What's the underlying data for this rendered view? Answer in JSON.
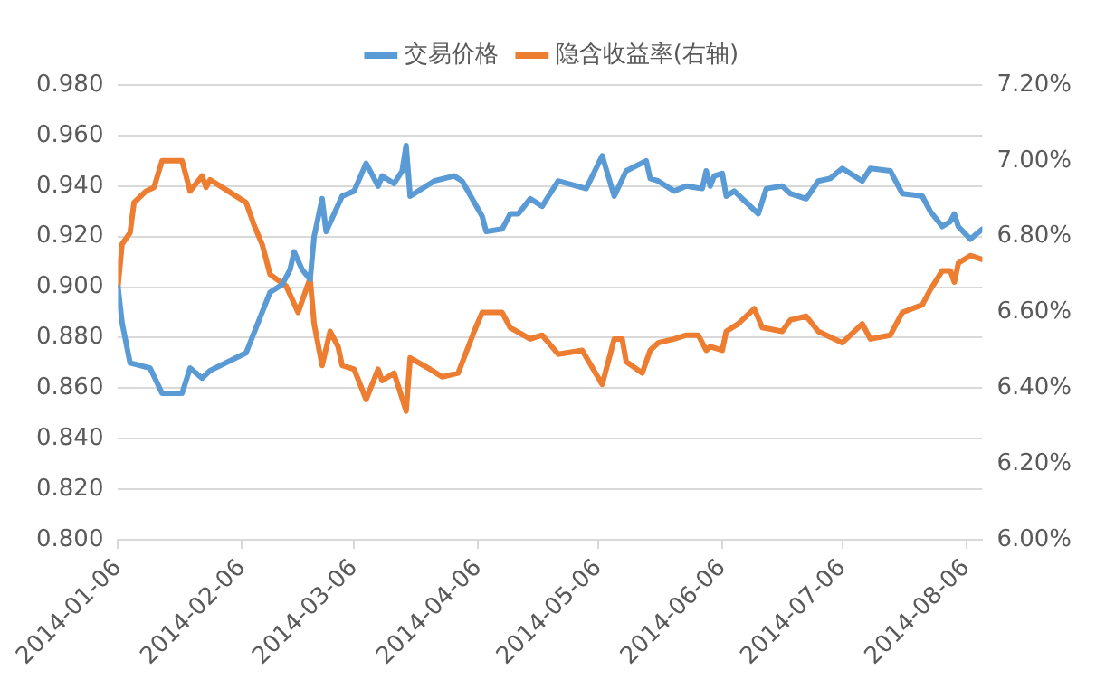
{
  "chart_data": {
    "type": "line",
    "legend": "top",
    "grid": "y",
    "marker": "none",
    "line_style": "solid",
    "xlim": [
      "2014-01-06",
      "2014-08-10"
    ],
    "xticks": [
      "2014-01-06",
      "2014-02-06",
      "2014-03-06",
      "2014-04-06",
      "2014-05-06",
      "2014-06-06",
      "2014-07-06",
      "2014-08-06"
    ],
    "ylim": [
      0.8,
      0.98
    ],
    "yticks": [
      {
        "value": 0.8,
        "label": "0.800"
      },
      {
        "value": 0.82,
        "label": "0.820"
      },
      {
        "value": 0.84,
        "label": "0.840"
      },
      {
        "value": 0.86,
        "label": "0.860"
      },
      {
        "value": 0.88,
        "label": "0.880"
      },
      {
        "value": 0.9,
        "label": "0.900"
      },
      {
        "value": 0.92,
        "label": "0.920"
      },
      {
        "value": 0.94,
        "label": "0.940"
      },
      {
        "value": 0.96,
        "label": "0.960"
      },
      {
        "value": 0.98,
        "label": "0.980"
      }
    ],
    "y2lim": [
      6.0,
      7.2
    ],
    "y2ticks": [
      {
        "value": 6.0,
        "label": "6.00%"
      },
      {
        "value": 6.2,
        "label": "6.20%"
      },
      {
        "value": 6.4,
        "label": "6.40%"
      },
      {
        "value": 6.6,
        "label": "6.60%"
      },
      {
        "value": 6.8,
        "label": "6.80%"
      },
      {
        "value": 7.0,
        "label": "7.00%"
      },
      {
        "value": 7.2,
        "label": "7.20%"
      }
    ],
    "series": [
      {
        "name": "交易价格",
        "color": "#5b9bd5",
        "x": [
          "2014-01-06",
          "2014-01-07",
          "2014-01-09",
          "2014-01-14",
          "2014-01-17",
          "2014-01-22",
          "2014-01-24",
          "2014-01-27",
          "2014-01-29",
          "2014-02-07",
          "2014-02-09",
          "2014-02-13",
          "2014-02-16",
          "2014-02-18",
          "2014-02-19",
          "2014-02-21",
          "2014-02-23",
          "2014-02-24",
          "2014-02-26",
          "2014-02-27",
          "2014-03-03",
          "2014-03-06",
          "2014-03-09",
          "2014-03-12",
          "2014-03-13",
          "2014-03-16",
          "2014-03-18",
          "2014-03-19",
          "2014-03-20",
          "2014-03-26",
          "2014-03-31",
          "2014-04-02",
          "2014-04-07",
          "2014-04-08",
          "2014-04-12",
          "2014-04-14",
          "2014-04-16",
          "2014-04-19",
          "2014-04-22",
          "2014-04-26",
          "2014-05-03",
          "2014-05-07",
          "2014-05-10",
          "2014-05-13",
          "2014-05-18",
          "2014-05-19",
          "2014-05-21",
          "2014-05-25",
          "2014-05-28",
          "2014-06-01",
          "2014-06-02",
          "2014-06-03",
          "2014-06-04",
          "2014-06-06",
          "2014-06-07",
          "2014-06-09",
          "2014-06-11",
          "2014-06-15",
          "2014-06-17",
          "2014-06-21",
          "2014-06-23",
          "2014-06-27",
          "2014-06-30",
          "2014-07-03",
          "2014-07-06",
          "2014-07-11",
          "2014-07-13",
          "2014-07-18",
          "2014-07-21",
          "2014-07-26",
          "2014-07-28",
          "2014-07-31",
          "2014-08-02",
          "2014-08-03",
          "2014-08-04",
          "2014-08-07",
          "2014-08-10"
        ],
        "values": [
          0.9,
          0.886,
          0.87,
          0.868,
          0.858,
          0.858,
          0.868,
          0.864,
          0.867,
          0.874,
          0.882,
          0.898,
          0.901,
          0.907,
          0.914,
          0.907,
          0.903,
          0.92,
          0.935,
          0.922,
          0.936,
          0.938,
          0.949,
          0.94,
          0.944,
          0.941,
          0.946,
          0.956,
          0.936,
          0.942,
          0.944,
          0.942,
          0.928,
          0.922,
          0.923,
          0.929,
          0.929,
          0.935,
          0.932,
          0.942,
          0.939,
          0.952,
          0.936,
          0.946,
          0.95,
          0.943,
          0.942,
          0.938,
          0.94,
          0.939,
          0.946,
          0.94,
          0.944,
          0.945,
          0.936,
          0.938,
          0.935,
          0.929,
          0.939,
          0.94,
          0.937,
          0.935,
          0.942,
          0.943,
          0.947,
          0.942,
          0.947,
          0.946,
          0.937,
          0.936,
          0.93,
          0.924,
          0.926,
          0.929,
          0.924,
          0.919,
          0.923
        ]
      },
      {
        "name": "隐含收益率(右轴)",
        "color": "#ed7d31",
        "axis": "y2",
        "x": [
          "2014-01-06",
          "2014-01-07",
          "2014-01-09",
          "2014-01-10",
          "2014-01-13",
          "2014-01-15",
          "2014-01-17",
          "2014-01-22",
          "2014-01-24",
          "2014-01-27",
          "2014-01-28",
          "2014-01-29",
          "2014-02-07",
          "2014-02-09",
          "2014-02-11",
          "2014-02-13",
          "2014-02-17",
          "2014-02-20",
          "2014-02-23",
          "2014-02-24",
          "2014-02-26",
          "2014-02-28",
          "2014-03-02",
          "2014-03-03",
          "2014-03-06",
          "2014-03-09",
          "2014-03-12",
          "2014-03-13",
          "2014-03-16",
          "2014-03-19",
          "2014-03-20",
          "2014-03-25",
          "2014-03-28",
          "2014-04-01",
          "2014-04-05",
          "2014-04-07",
          "2014-04-12",
          "2014-04-14",
          "2014-04-19",
          "2014-04-22",
          "2014-04-26",
          "2014-05-02",
          "2014-05-07",
          "2014-05-10",
          "2014-05-12",
          "2014-05-13",
          "2014-05-17",
          "2014-05-19",
          "2014-05-21",
          "2014-05-25",
          "2014-05-28",
          "2014-05-31",
          "2014-06-02",
          "2014-06-03",
          "2014-06-06",
          "2014-06-07",
          "2014-06-10",
          "2014-06-14",
          "2014-06-16",
          "2014-06-21",
          "2014-06-23",
          "2014-06-27",
          "2014-06-30",
          "2014-07-06",
          "2014-07-11",
          "2014-07-13",
          "2014-07-18",
          "2014-07-21",
          "2014-07-26",
          "2014-07-28",
          "2014-07-31",
          "2014-08-02",
          "2014-08-03",
          "2014-08-04",
          "2014-08-07",
          "2014-08-10"
        ],
        "values": [
          6.67,
          6.78,
          6.81,
          6.89,
          6.92,
          6.93,
          7.0,
          7.0,
          6.92,
          6.96,
          6.93,
          6.95,
          6.89,
          6.83,
          6.78,
          6.7,
          6.67,
          6.6,
          6.69,
          6.57,
          6.46,
          6.55,
          6.51,
          6.46,
          6.45,
          6.37,
          6.45,
          6.42,
          6.44,
          6.34,
          6.48,
          6.45,
          6.43,
          6.44,
          6.55,
          6.6,
          6.6,
          6.56,
          6.53,
          6.54,
          6.49,
          6.5,
          6.41,
          6.53,
          6.53,
          6.47,
          6.44,
          6.5,
          6.52,
          6.53,
          6.54,
          6.54,
          6.5,
          6.51,
          6.5,
          6.55,
          6.57,
          6.61,
          6.56,
          6.55,
          6.58,
          6.59,
          6.55,
          6.52,
          6.57,
          6.53,
          6.54,
          6.6,
          6.62,
          6.66,
          6.71,
          6.71,
          6.68,
          6.73,
          6.75,
          6.74
        ]
      }
    ]
  }
}
